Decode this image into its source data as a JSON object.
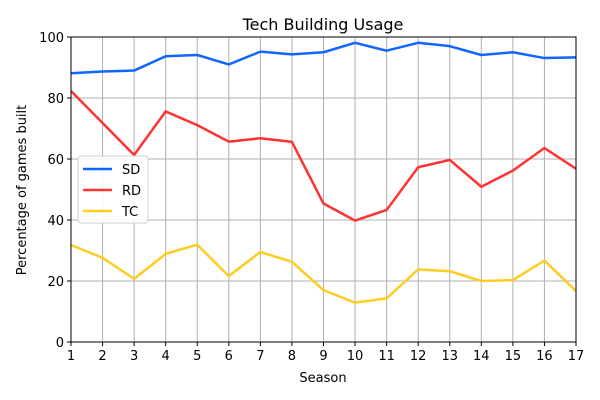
{
  "chart_data": {
    "type": "line",
    "title": "Tech Building Usage",
    "xlabel": "Season",
    "ylabel": "Percentage of games built",
    "xlim": [
      1,
      17
    ],
    "ylim": [
      0,
      100
    ],
    "x": [
      1,
      2,
      3,
      4,
      5,
      6,
      7,
      8,
      9,
      10,
      11,
      12,
      13,
      14,
      15,
      16,
      17
    ],
    "xticks": [
      "1",
      "2",
      "3",
      "4",
      "5",
      "6",
      "7",
      "8",
      "9",
      "10",
      "11",
      "12",
      "13",
      "14",
      "15",
      "16",
      "17"
    ],
    "yticks": [
      "0",
      "20",
      "40",
      "60",
      "80",
      "100"
    ],
    "yticks_values": [
      0,
      20,
      40,
      60,
      80,
      100
    ],
    "grid": true,
    "legend_position": "center-left",
    "series": [
      {
        "name": "SD",
        "color": "#1166ff",
        "values": [
          88.1,
          88.7,
          89.0,
          93.7,
          94.1,
          91.0,
          95.2,
          94.3,
          95.0,
          98.1,
          95.5,
          98.1,
          97.0,
          94.1,
          95.0,
          93.1,
          93.3
        ]
      },
      {
        "name": "RD",
        "color": "#ff3333",
        "values": [
          82.3,
          71.8,
          61.3,
          75.6,
          71.1,
          65.7,
          66.8,
          65.6,
          45.4,
          39.8,
          43.3,
          57.3,
          59.7,
          50.9,
          56.2,
          63.6,
          56.8
        ]
      },
      {
        "name": "TC",
        "color": "#ffcc22",
        "values": [
          31.8,
          27.6,
          20.7,
          28.9,
          31.9,
          21.6,
          29.5,
          26.3,
          17.0,
          12.9,
          14.3,
          23.8,
          23.2,
          20.0,
          20.3,
          26.7,
          16.7
        ]
      }
    ]
  }
}
